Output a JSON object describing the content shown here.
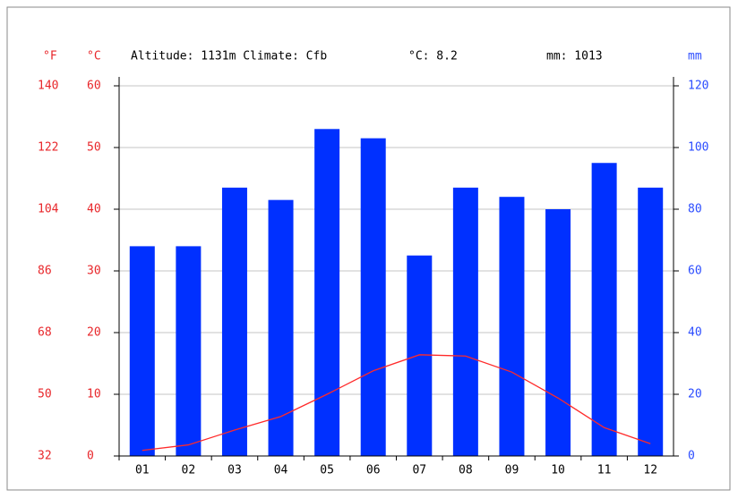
{
  "chart_data": {
    "type": "bar-line",
    "header": [
      "Altitude: 1131m Climate: Cfb",
      "°C: 8.2",
      "mm: 1013"
    ],
    "ylabel": "°C",
    "y2label": "mm",
    "y3label": "°F",
    "categories": [
      "01",
      "02",
      "03",
      "04",
      "05",
      "06",
      "07",
      "08",
      "09",
      "10",
      "11",
      "12"
    ],
    "series": [
      {
        "type": "bar",
        "axis": "y2",
        "color": "#0030ff",
        "values": [
          68,
          68,
          87,
          83,
          106,
          103,
          65,
          87,
          84,
          80,
          95,
          87
        ]
      },
      {
        "type": "line",
        "axis": "y",
        "color": "#ff2a2a",
        "values": [
          0.9,
          1.8,
          4.2,
          6.4,
          10,
          13.8,
          16.4,
          16.2,
          13.6,
          9.4,
          4.6,
          2
        ]
      }
    ],
    "ylim": [
      0,
      60
    ],
    "yticks": [
      0,
      10,
      20,
      30,
      40,
      50,
      60
    ],
    "y2lim": [
      0,
      120
    ],
    "y2ticks": [
      0,
      20,
      40,
      60,
      80,
      100,
      120
    ],
    "y3lim": [
      32,
      140
    ],
    "y3ticks": [
      32,
      50,
      68,
      86,
      104,
      122,
      140
    ],
    "grid": true
  }
}
